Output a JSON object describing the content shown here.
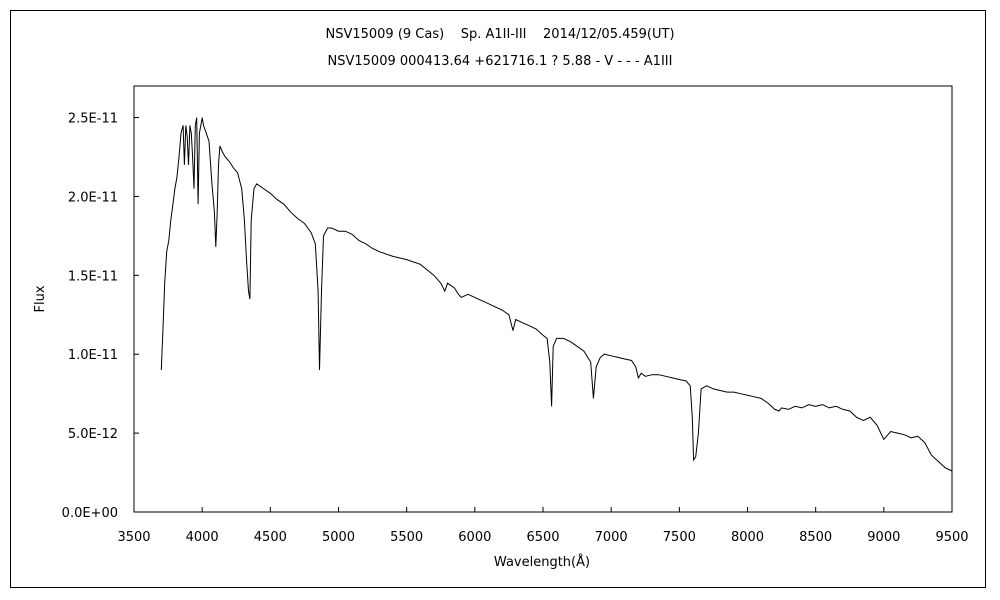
{
  "chart_data": {
    "type": "line",
    "title": "NSV15009 (9 Cas)    Sp. A1II-III    2014/12/05.459(UT)",
    "subtitle": "NSV15009 000413.64 +621716.1 ? 5.88 - V - - - A1III",
    "xlabel": "Wavelength(Å)",
    "ylabel": "Flux",
    "xlim": [
      3500,
      9500
    ],
    "ylim": [
      0,
      2.7e-11
    ],
    "grid": false,
    "x_ticks": [
      {
        "value": 3500,
        "label": "3500"
      },
      {
        "value": 4000,
        "label": "4000"
      },
      {
        "value": 4500,
        "label": "4500"
      },
      {
        "value": 5000,
        "label": "5000"
      },
      {
        "value": 5500,
        "label": "5500"
      },
      {
        "value": 6000,
        "label": "6000"
      },
      {
        "value": 6500,
        "label": "6500"
      },
      {
        "value": 7000,
        "label": "7000"
      },
      {
        "value": 7500,
        "label": "7500"
      },
      {
        "value": 8000,
        "label": "8000"
      },
      {
        "value": 8500,
        "label": "8500"
      },
      {
        "value": 9000,
        "label": "9000"
      },
      {
        "value": 9500,
        "label": "9500"
      }
    ],
    "y_ticks": [
      {
        "value": 0,
        "label": "0.0E+00"
      },
      {
        "value": 5e-12,
        "label": "5.0E-12"
      },
      {
        "value": 1e-11,
        "label": "1.0E-11"
      },
      {
        "value": 1.5e-11,
        "label": "1.5E-11"
      },
      {
        "value": 2e-11,
        "label": "2.0E-11"
      },
      {
        "value": 2.5e-11,
        "label": "2.5E-11"
      }
    ],
    "series": [
      {
        "color": "#000000",
        "x": [
          3700,
          3712,
          3725,
          3740,
          3755,
          3770,
          3785,
          3800,
          3815,
          3830,
          3845,
          3860,
          3870,
          3880,
          3890,
          3900,
          3910,
          3920,
          3930,
          3940,
          3950,
          3960,
          3970,
          3980,
          3990,
          4000,
          4010,
          4030,
          4050,
          4070,
          4090,
          4100,
          4110,
          4120,
          4130,
          4150,
          4170,
          4200,
          4230,
          4260,
          4290,
          4310,
          4325,
          4340,
          4350,
          4360,
          4380,
          4400,
          4450,
          4500,
          4550,
          4600,
          4650,
          4700,
          4750,
          4800,
          4830,
          4850,
          4861,
          4875,
          4890,
          4920,
          4950,
          5000,
          5050,
          5100,
          5150,
          5200,
          5250,
          5300,
          5400,
          5500,
          5600,
          5700,
          5750,
          5780,
          5800,
          5850,
          5880,
          5900,
          5950,
          6000,
          6050,
          6100,
          6150,
          6200,
          6250,
          6280,
          6300,
          6350,
          6400,
          6450,
          6500,
          6530,
          6550,
          6563,
          6575,
          6600,
          6650,
          6700,
          6750,
          6800,
          6850,
          6870,
          6890,
          6920,
          6950,
          7000,
          7050,
          7100,
          7150,
          7180,
          7200,
          7220,
          7250,
          7300,
          7350,
          7400,
          7450,
          7500,
          7550,
          7580,
          7595,
          7605,
          7620,
          7640,
          7660,
          7700,
          7750,
          7800,
          7850,
          7900,
          7950,
          8000,
          8050,
          8100,
          8150,
          8200,
          8230,
          8250,
          8300,
          8350,
          8400,
          8450,
          8500,
          8550,
          8600,
          8650,
          8700,
          8750,
          8800,
          8850,
          8900,
          8950,
          9000,
          9050,
          9100,
          9150,
          9200,
          9250,
          9300,
          9350,
          9400,
          9450,
          9500
        ],
        "y": [
          9e-12,
          1.15e-11,
          1.45e-11,
          1.65e-11,
          1.72e-11,
          1.85e-11,
          1.95e-11,
          2.05e-11,
          2.12e-11,
          2.25e-11,
          2.4e-11,
          2.45e-11,
          2.2e-11,
          2.45e-11,
          2.38e-11,
          2.2e-11,
          2.45e-11,
          2.4e-11,
          2.25e-11,
          2.05e-11,
          2.45e-11,
          2.5e-11,
          1.95e-11,
          2.4e-11,
          2.45e-11,
          2.5e-11,
          2.45e-11,
          2.4e-11,
          2.35e-11,
          2.1e-11,
          1.9e-11,
          1.68e-11,
          1.9e-11,
          2.2e-11,
          2.32e-11,
          2.28e-11,
          2.25e-11,
          2.22e-11,
          2.18e-11,
          2.15e-11,
          2.05e-11,
          1.85e-11,
          1.6e-11,
          1.4e-11,
          1.35e-11,
          1.85e-11,
          2.05e-11,
          2.08e-11,
          2.05e-11,
          2.02e-11,
          1.98e-11,
          1.95e-11,
          1.9e-11,
          1.86e-11,
          1.83e-11,
          1.77e-11,
          1.7e-11,
          1.4e-11,
          9e-12,
          1.4e-11,
          1.75e-11,
          1.8e-11,
          1.8e-11,
          1.78e-11,
          1.78e-11,
          1.76e-11,
          1.72e-11,
          1.7e-11,
          1.67e-11,
          1.65e-11,
          1.62e-11,
          1.6e-11,
          1.57e-11,
          1.5e-11,
          1.45e-11,
          1.4e-11,
          1.45e-11,
          1.42e-11,
          1.38e-11,
          1.36e-11,
          1.38e-11,
          1.36e-11,
          1.34e-11,
          1.32e-11,
          1.3e-11,
          1.28e-11,
          1.25e-11,
          1.15e-11,
          1.22e-11,
          1.2e-11,
          1.18e-11,
          1.16e-11,
          1.12e-11,
          1.1e-11,
          9.5e-12,
          6.7e-12,
          1.05e-11,
          1.1e-11,
          1.1e-11,
          1.08e-11,
          1.05e-11,
          1.02e-11,
          9.5e-12,
          7.2e-12,
          9.2e-12,
          9.8e-12,
          1e-11,
          9.9e-12,
          9.8e-12,
          9.7e-12,
          9.6e-12,
          9.2e-12,
          8.5e-12,
          8.8e-12,
          8.6e-12,
          8.7e-12,
          8.7e-12,
          8.6e-12,
          8.5e-12,
          8.4e-12,
          8.3e-12,
          8e-12,
          6e-12,
          3.3e-12,
          3.5e-12,
          5e-12,
          7.8e-12,
          8e-12,
          7.8e-12,
          7.7e-12,
          7.6e-12,
          7.6e-12,
          7.5e-12,
          7.4e-12,
          7.3e-12,
          7.2e-12,
          6.9e-12,
          6.5e-12,
          6.4e-12,
          6.6e-12,
          6.5e-12,
          6.7e-12,
          6.6e-12,
          6.8e-12,
          6.7e-12,
          6.8e-12,
          6.6e-12,
          6.7e-12,
          6.5e-12,
          6.4e-12,
          6e-12,
          5.8e-12,
          6e-12,
          5.5e-12,
          4.6e-12,
          5.1e-12,
          5e-12,
          4.9e-12,
          4.7e-12,
          4.8e-12,
          4.4e-12,
          3.6e-12,
          3.2e-12,
          2.8e-12,
          2.6e-12
        ]
      }
    ]
  }
}
